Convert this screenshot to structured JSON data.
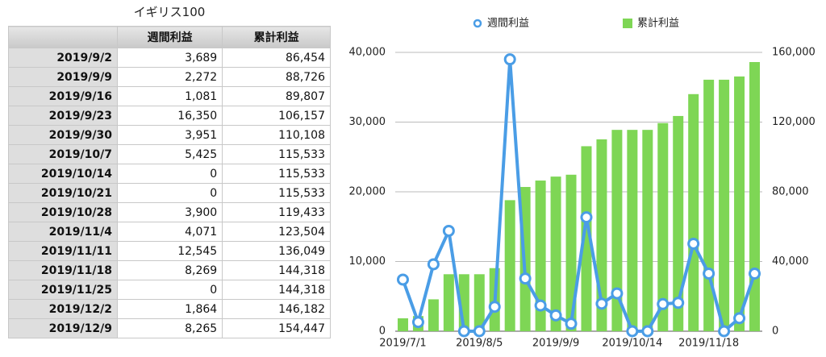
{
  "table": {
    "title": "イギリス100",
    "header": [
      "週間利益",
      "累計利益"
    ],
    "rows": [
      [
        "2019/9/2",
        "3,689",
        "86,454"
      ],
      [
        "2019/9/9",
        "2,272",
        "88,726"
      ],
      [
        "2019/9/16",
        "1,081",
        "89,807"
      ],
      [
        "2019/9/23",
        "16,350",
        "106,157"
      ],
      [
        "2019/9/30",
        "3,951",
        "110,108"
      ],
      [
        "2019/10/7",
        "5,425",
        "115,533"
      ],
      [
        "2019/10/14",
        "0",
        "115,533"
      ],
      [
        "2019/10/21",
        "0",
        "115,533"
      ],
      [
        "2019/10/28",
        "3,900",
        "119,433"
      ],
      [
        "2019/11/4",
        "4,071",
        "123,504"
      ],
      [
        "2019/11/11",
        "12,545",
        "136,049"
      ],
      [
        "2019/11/18",
        "8,269",
        "144,318"
      ],
      [
        "2019/11/25",
        "0",
        "144,318"
      ],
      [
        "2019/12/2",
        "1,864",
        "146,182"
      ],
      [
        "2019/12/9",
        "8,265",
        "154,447"
      ]
    ]
  },
  "chart_data": {
    "type": "combo",
    "legend": "top",
    "categories": [
      "2019/7/1",
      null,
      null,
      null,
      null,
      "2019/8/5",
      null,
      null,
      null,
      null,
      "2019/9/9",
      null,
      null,
      null,
      null,
      "2019/10/14",
      null,
      null,
      null,
      null,
      "2019/11/18",
      null,
      null,
      null
    ],
    "series": [
      {
        "name": "週間利益",
        "type": "line",
        "color": "#4a9de6",
        "axis": "y",
        "values": [
          7400,
          1300,
          9600,
          14400,
          0,
          0,
          3500,
          39000,
          7565,
          3689,
          2272,
          1081,
          16350,
          3951,
          5425,
          0,
          0,
          3900,
          4071,
          12545,
          8269,
          0,
          1864,
          8265
        ]
      },
      {
        "name": "累計利益",
        "type": "bar",
        "color": "#7ed655",
        "axis": "y2",
        "values": [
          7400,
          8700,
          18300,
          32700,
          32700,
          32700,
          36200,
          75200,
          82765,
          86454,
          88726,
          89807,
          106157,
          110108,
          115533,
          115533,
          115533,
          119433,
          123504,
          136049,
          144318,
          144318,
          146182,
          154447
        ]
      }
    ],
    "ylim": [
      0,
      40000
    ],
    "yticks": [
      0,
      {
        "value": 10000,
        "label": "10,000"
      },
      {
        "value": 20000,
        "label": "20,000"
      },
      {
        "value": 30000,
        "label": "30,000"
      },
      {
        "value": 40000,
        "label": "40,000"
      }
    ],
    "y2lim": [
      0,
      160000
    ],
    "y2ticks": [
      0,
      {
        "value": 40000,
        "label": "40,000"
      },
      {
        "value": 80000,
        "label": "80,000"
      },
      {
        "value": 120000,
        "label": "120,000"
      },
      {
        "value": 160000,
        "label": "160,000"
      }
    ],
    "grid": true
  }
}
